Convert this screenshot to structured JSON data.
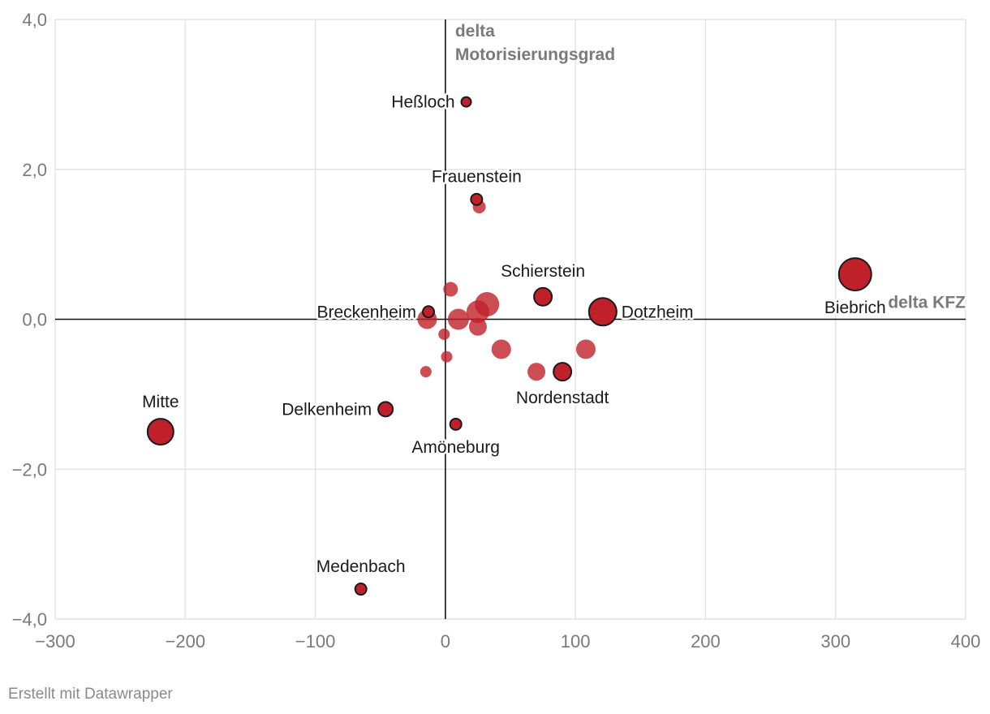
{
  "footer": {
    "credit": "Erstellt mit Datawrapper"
  },
  "colors": {
    "point_fill": "#c0202a",
    "point_outline": "#1a1a1a",
    "grid": "#e3e3e3",
    "zero_line": "#111111"
  },
  "chart_data": {
    "type": "scatter",
    "xlabel": "delta KFZ",
    "ylabel_lines": [
      "delta",
      "Motorisierungsgrad"
    ],
    "xlim": [
      -300,
      400
    ],
    "ylim": [
      -4,
      4
    ],
    "x_ticks": [
      -300,
      -200,
      -100,
      0,
      100,
      200,
      300,
      400
    ],
    "x_tick_labels": [
      "−300",
      "−200",
      "−100",
      "0",
      "100",
      "200",
      "300",
      "400"
    ],
    "y_ticks": [
      4,
      2,
      0,
      -2,
      -4
    ],
    "y_tick_labels": [
      "4,0",
      "2,0",
      "0,0",
      "−2,0",
      "−4,0"
    ],
    "grid": true,
    "points": [
      {
        "x": 4,
        "y": 0.4,
        "size": 9,
        "label": "",
        "highlight": false
      },
      {
        "x": 32,
        "y": 0.2,
        "size": 15,
        "label": "",
        "highlight": false
      },
      {
        "x": 25,
        "y": 0.1,
        "size": 14,
        "label": "",
        "highlight": false
      },
      {
        "x": 10,
        "y": 0.0,
        "size": 13,
        "label": "",
        "highlight": false
      },
      {
        "x": -14,
        "y": 0.0,
        "size": 12,
        "label": "",
        "highlight": false
      },
      {
        "x": 25,
        "y": -0.1,
        "size": 11,
        "label": "",
        "highlight": false
      },
      {
        "x": -1,
        "y": -0.2,
        "size": 7,
        "label": "",
        "highlight": false
      },
      {
        "x": 43,
        "y": -0.4,
        "size": 12,
        "label": "",
        "highlight": false
      },
      {
        "x": 108,
        "y": -0.4,
        "size": 12,
        "label": "",
        "highlight": false
      },
      {
        "x": 1,
        "y": -0.5,
        "size": 7,
        "label": "",
        "highlight": false
      },
      {
        "x": 70,
        "y": -0.7,
        "size": 11,
        "label": "",
        "highlight": false
      },
      {
        "x": -15,
        "y": -0.7,
        "size": 7,
        "label": "",
        "highlight": false
      },
      {
        "x": 26,
        "y": 1.5,
        "size": 8,
        "label": "",
        "highlight": false
      },
      {
        "x": 16,
        "y": 2.9,
        "size": 6,
        "label": "Heßloch",
        "highlight": true,
        "anchor": "left"
      },
      {
        "x": 24,
        "y": 1.6,
        "size": 7,
        "label": "Frauenstein",
        "highlight": true,
        "anchor": "above"
      },
      {
        "x": 75,
        "y": 0.3,
        "size": 11,
        "label": "Schierstein",
        "highlight": true,
        "anchor": "above"
      },
      {
        "x": -13,
        "y": 0.1,
        "size": 7,
        "label": "Breckenheim",
        "highlight": true,
        "anchor": "left"
      },
      {
        "x": 121,
        "y": 0.1,
        "size": 17,
        "label": "Dotzheim",
        "highlight": true,
        "anchor": "right"
      },
      {
        "x": 315,
        "y": 0.6,
        "size": 20,
        "label": "Biebrich",
        "highlight": true,
        "anchor": "below"
      },
      {
        "x": 90,
        "y": -0.7,
        "size": 11,
        "label": "Nordenstadt",
        "highlight": true,
        "anchor": "below"
      },
      {
        "x": -219,
        "y": -1.5,
        "size": 16,
        "label": "Mitte",
        "highlight": true,
        "anchor": "above"
      },
      {
        "x": -46,
        "y": -1.2,
        "size": 9,
        "label": "Delkenheim",
        "highlight": true,
        "anchor": "left"
      },
      {
        "x": 8,
        "y": -1.4,
        "size": 7,
        "label": "Amöneburg",
        "highlight": true,
        "anchor": "below"
      },
      {
        "x": -65,
        "y": -3.6,
        "size": 7,
        "label": "Medenbach",
        "highlight": true,
        "anchor": "above"
      }
    ]
  }
}
